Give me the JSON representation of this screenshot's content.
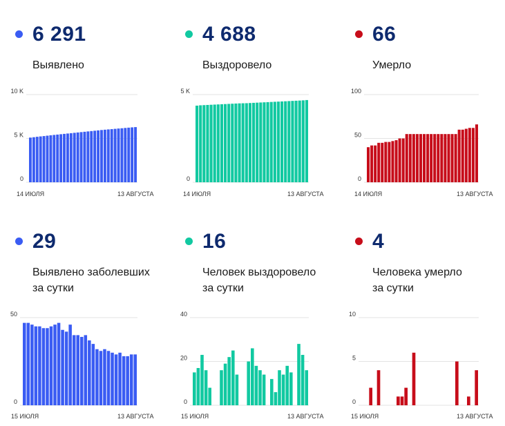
{
  "colors": {
    "blue": "#3a5cf3",
    "teal": "#11c9a1",
    "red": "#c70d1a",
    "value": "#0e2a6e"
  },
  "panels": [
    {
      "id": "detected",
      "value": "6 291",
      "label1": "Выявлено",
      "label2": "",
      "color": "#3a5cf3"
    },
    {
      "id": "recovered",
      "value": "4 688",
      "label1": "Выздоровело",
      "label2": "",
      "color": "#11c9a1"
    },
    {
      "id": "died",
      "value": "66",
      "label1": "Умерло",
      "label2": "",
      "color": "#c70d1a"
    },
    {
      "id": "detected-daily",
      "value": "29",
      "label1": "Выявлено заболевших",
      "label2": "за сутки",
      "color": "#3a5cf3"
    },
    {
      "id": "recovered-daily",
      "value": "16",
      "label1": "Человек выздоровело",
      "label2": "за сутки",
      "color": "#11c9a1"
    },
    {
      "id": "died-daily",
      "value": "4",
      "label1": "Человека умерло",
      "label2": "за сутки",
      "color": "#c70d1a"
    }
  ],
  "chart_data": [
    {
      "type": "bar",
      "title": "Выявлено",
      "color": "#3a5cf3",
      "ylim": [
        0,
        10000
      ],
      "yticks": [
        0,
        5000,
        10000
      ],
      "yticklabels": [
        "0",
        "5 K",
        "10 K"
      ],
      "xstart": "14 ИЮЛЯ",
      "xend": "13 АВГУСТА",
      "values": [
        5095,
        5140,
        5190,
        5230,
        5270,
        5315,
        5360,
        5400,
        5440,
        5480,
        5520,
        5560,
        5600,
        5640,
        5680,
        5720,
        5760,
        5800,
        5840,
        5880,
        5920,
        5960,
        5995,
        6030,
        6060,
        6095,
        6130,
        6160,
        6195,
        6230,
        6262,
        6291
      ]
    },
    {
      "type": "bar",
      "title": "Выздоровело",
      "color": "#11c9a1",
      "ylim": [
        0,
        5000
      ],
      "yticks": [
        0,
        5000
      ],
      "yticklabels": [
        "0",
        "5 K"
      ],
      "xstart": "14 ИЮЛЯ",
      "xend": "13 АВГУСТА",
      "values": [
        4370,
        4390,
        4400,
        4410,
        4420,
        4430,
        4440,
        4450,
        4460,
        4470,
        4480,
        4490,
        4500,
        4505,
        4510,
        4520,
        4530,
        4540,
        4550,
        4560,
        4570,
        4580,
        4590,
        4600,
        4610,
        4620,
        4630,
        4640,
        4650,
        4660,
        4672,
        4688
      ]
    },
    {
      "type": "bar",
      "title": "Умерло",
      "color": "#c70d1a",
      "ylim": [
        0,
        100
      ],
      "yticks": [
        0,
        50,
        100
      ],
      "yticklabels": [
        "0",
        "50",
        "100"
      ],
      "xstart": "14 ИЮЛЯ",
      "xend": "13 АВГУСТА",
      "values": [
        40,
        42,
        42,
        45,
        45,
        46,
        46,
        47,
        48,
        50,
        50,
        55,
        55,
        55,
        55,
        55,
        55,
        55,
        55,
        55,
        55,
        55,
        55,
        55,
        55,
        55,
        60,
        60,
        61,
        62,
        62,
        66
      ]
    },
    {
      "type": "bar",
      "title": "Выявлено заболевших за сутки",
      "color": "#3a5cf3",
      "ylim": [
        0,
        50
      ],
      "yticks": [
        0,
        50
      ],
      "yticklabels": [
        "0",
        "50"
      ],
      "xstart": "15 ИЮЛЯ",
      "xend": "13 АВГУСТА",
      "values": [
        47,
        47,
        46,
        45,
        45,
        44,
        44,
        45,
        46,
        47,
        43,
        42,
        46,
        40,
        40,
        39,
        40,
        37,
        35,
        32,
        31,
        32,
        31,
        30,
        29,
        30,
        28,
        28,
        29,
        29
      ]
    },
    {
      "type": "bar",
      "title": "Человек выздоровело за сутки",
      "color": "#11c9a1",
      "ylim": [
        0,
        40
      ],
      "yticks": [
        0,
        20,
        40
      ],
      "yticklabels": [
        "0",
        "20",
        "40"
      ],
      "xstart": "15 ИЮЛЯ",
      "xend": "13 АВГУСТА",
      "values": [
        15,
        17,
        23,
        16,
        8,
        0,
        0,
        16,
        19,
        22,
        25,
        14,
        0,
        0,
        20,
        26,
        18,
        16,
        14,
        0,
        12,
        6,
        16,
        14,
        18,
        15,
        0,
        28,
        23,
        16
      ]
    },
    {
      "type": "bar",
      "title": "Человека умерло за сутки",
      "color": "#c70d1a",
      "ylim": [
        0,
        10
      ],
      "yticks": [
        0,
        5,
        10
      ],
      "yticklabels": [
        "0",
        "5",
        "10"
      ],
      "xstart": "15 ИЮЛЯ",
      "xend": "13 АВГУСТА",
      "values": [
        0,
        0,
        2,
        0,
        4,
        0,
        0,
        0,
        0,
        1,
        1,
        2,
        0,
        6,
        0,
        0,
        0,
        0,
        0,
        0,
        0,
        0,
        0,
        0,
        5,
        0,
        0,
        1,
        0,
        4
      ]
    }
  ]
}
